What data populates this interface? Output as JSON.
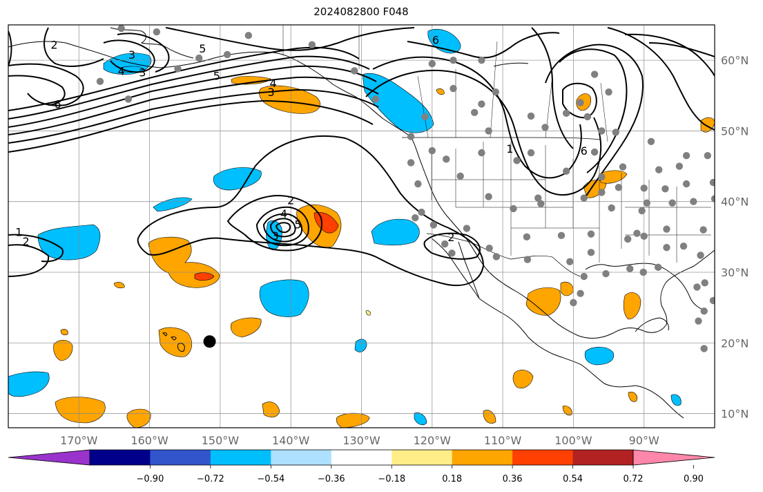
{
  "title": "2024082800 F048",
  "map": {
    "projection": "plate-carree",
    "lon_range": [
      -180,
      -80
    ],
    "lat_range": [
      8,
      65
    ],
    "grid": true,
    "lon_ticks": [
      {
        "value": -170,
        "label": "170°W"
      },
      {
        "value": -160,
        "label": "160°W"
      },
      {
        "value": -150,
        "label": "150°W"
      },
      {
        "value": -140,
        "label": "140°W"
      },
      {
        "value": -130,
        "label": "130°W"
      },
      {
        "value": -120,
        "label": "120°W"
      },
      {
        "value": -110,
        "label": "110°W"
      },
      {
        "value": -100,
        "label": "100°W"
      },
      {
        "value": -90,
        "label": "90°W"
      }
    ],
    "lat_ticks": [
      {
        "value": 60,
        "label": "60°N"
      },
      {
        "value": 50,
        "label": "50°N"
      },
      {
        "value": 40,
        "label": "40°N"
      },
      {
        "value": 30,
        "label": "30°N"
      },
      {
        "value": 20,
        "label": "20°N"
      },
      {
        "value": 10,
        "label": "10°N"
      }
    ],
    "contour_labels": [
      {
        "text": "2",
        "lon": -173.5,
        "lat": 62.2
      },
      {
        "text": "3",
        "lon": -162.5,
        "lat": 60.8
      },
      {
        "text": "4",
        "lon": -164,
        "lat": 58.5
      },
      {
        "text": "3",
        "lon": -161,
        "lat": 58.3
      },
      {
        "text": "5",
        "lon": -152.5,
        "lat": 61.7
      },
      {
        "text": "5",
        "lon": -150.5,
        "lat": 57.8
      },
      {
        "text": "6",
        "lon": -173,
        "lat": 53.8
      },
      {
        "text": "4",
        "lon": -142.5,
        "lat": 56.8
      },
      {
        "text": "3",
        "lon": -142.8,
        "lat": 55.5
      },
      {
        "text": "6",
        "lon": -119.5,
        "lat": 62.9
      },
      {
        "text": "1",
        "lon": -109,
        "lat": 47.5
      },
      {
        "text": "6",
        "lon": -98.5,
        "lat": 47.2
      },
      {
        "text": "2",
        "lon": -140,
        "lat": 40.2
      },
      {
        "text": "4",
        "lon": -141,
        "lat": 38.3
      },
      {
        "text": "5",
        "lon": -139,
        "lat": 36.8
      },
      {
        "text": "3",
        "lon": -142.2,
        "lat": 35.2
      },
      {
        "text": "1",
        "lon": -178.5,
        "lat": 35.7
      },
      {
        "text": "2",
        "lon": -177.5,
        "lat": 34.4
      },
      {
        "text": "2",
        "lon": -117.3,
        "lat": 35.0
      }
    ],
    "station_dot_color": "#808080",
    "hawaii_marker": {
      "lon": -151.5,
      "lat": 20.2,
      "color": "#000000"
    }
  },
  "colorbar": {
    "colors": [
      "#9933cc",
      "#00008b",
      "#3355cc",
      "#00bfff",
      "#aee0ff",
      "#ffffff",
      "#ffee88",
      "#ffa500",
      "#ff4000",
      "#b22222",
      "#ff88aa"
    ],
    "ticks": [
      {
        "value": -0.9,
        "label": "−0.90"
      },
      {
        "value": -0.72,
        "label": "−0.72"
      },
      {
        "value": -0.54,
        "label": "−0.54"
      },
      {
        "value": -0.36,
        "label": "−0.36"
      },
      {
        "value": -0.18,
        "label": "−0.18"
      },
      {
        "value": 0.18,
        "label": "0.18"
      },
      {
        "value": 0.36,
        "label": "0.36"
      },
      {
        "value": 0.54,
        "label": "0.54"
      },
      {
        "value": 0.72,
        "label": "0.72"
      },
      {
        "value": 0.9,
        "label": "0.90"
      }
    ]
  }
}
